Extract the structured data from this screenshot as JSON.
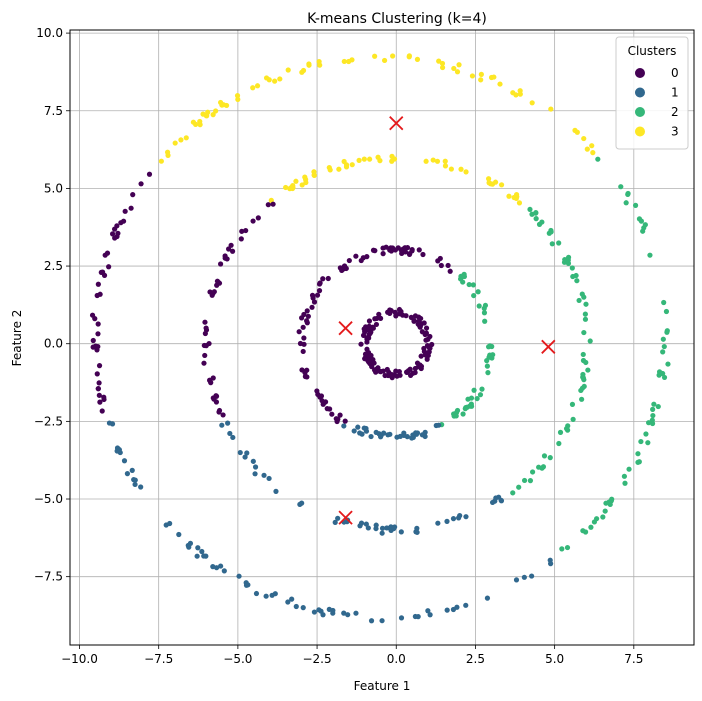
{
  "chart_data": {
    "type": "scatter",
    "title": "K-means Clustering (k=4)",
    "xlabel": "Feature 1",
    "ylabel": "Feature 2",
    "xlim": [
      -10.3,
      9.4
    ],
    "ylim": [
      -9.7,
      10.1
    ],
    "xticks": [
      -10.0,
      -7.5,
      -5.0,
      -2.5,
      0.0,
      2.5,
      5.0,
      7.5
    ],
    "yticks": [
      -7.5,
      -5.0,
      -2.5,
      0.0,
      2.5,
      5.0,
      7.5,
      10.0
    ],
    "xtick_labels": [
      "−10.0",
      "−7.5",
      "−5.0",
      "−2.5",
      "0.0",
      "2.5",
      "5.0",
      "7.5"
    ],
    "ytick_labels": [
      "−7.5",
      "−5.0",
      "−2.5",
      "0.0",
      "2.5",
      "5.0",
      "7.5",
      "10.0"
    ],
    "grid": true,
    "legend": {
      "title": "Clusters",
      "position": "top-right",
      "entries": [
        "0",
        "1",
        "2",
        "3"
      ]
    },
    "colors": {
      "0": "#440154",
      "1": "#31688e",
      "2": "#35b779",
      "3": "#fde725",
      "centroid": "#e41a1c"
    },
    "rings": [
      {
        "radius": 1.0,
        "count": 120,
        "center": [
          0,
          0
        ]
      },
      {
        "radius": 3.0,
        "count": 160,
        "center": [
          0,
          0
        ]
      },
      {
        "radius": 6.0,
        "count": 200,
        "center": [
          0,
          0
        ]
      },
      {
        "radius": 9.0,
        "count": 230,
        "center": [
          -0.5,
          0.2
        ]
      }
    ],
    "centroids": [
      {
        "cluster": "0",
        "x": -1.6,
        "y": 0.5
      },
      {
        "cluster": "1",
        "x": -1.6,
        "y": -5.6
      },
      {
        "cluster": "2",
        "x": 4.8,
        "y": -0.1
      },
      {
        "cluster": "3",
        "x": 0.0,
        "y": 7.1
      }
    ]
  }
}
